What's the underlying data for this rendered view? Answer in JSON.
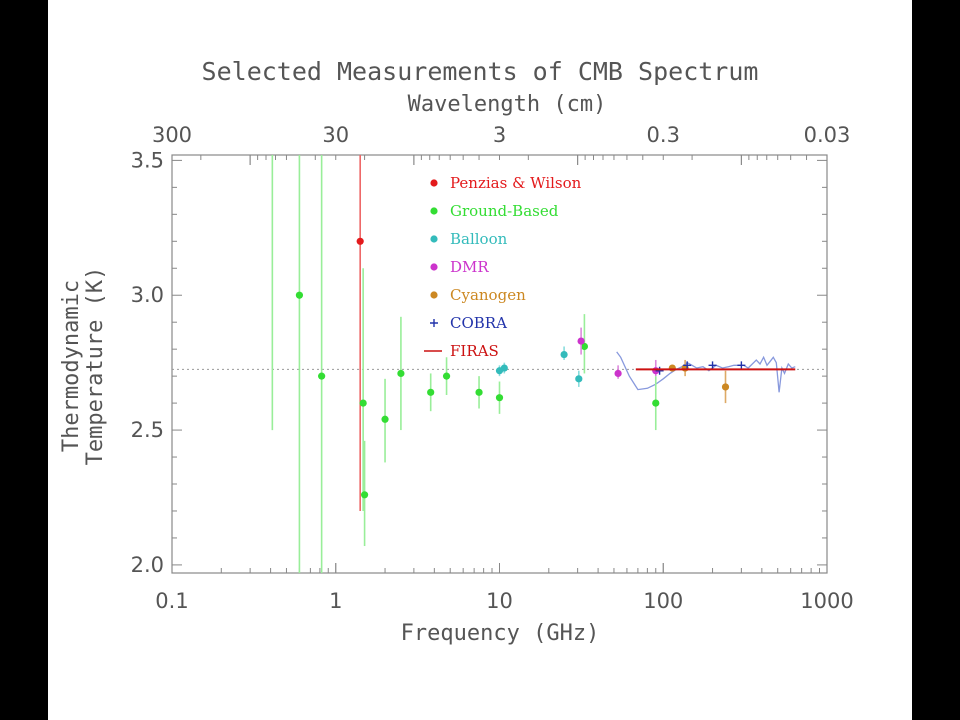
{
  "chart_data": {
    "type": "scatter",
    "title": "Selected Measurements of CMB Spectrum",
    "xlabel": "Frequency (GHz)",
    "ylabel_lines": [
      "Thermodynamic",
      "Temperature (K)"
    ],
    "top_axis_label": "Wavelength (cm)",
    "x_scale": "log",
    "xlim": [
      0.1,
      1000
    ],
    "ylim": [
      1.97,
      3.52
    ],
    "x_ticks": [
      {
        "value": 0.1,
        "label": "0.1"
      },
      {
        "value": 1,
        "label": "1"
      },
      {
        "value": 10,
        "label": "10"
      },
      {
        "value": 100,
        "label": "100"
      },
      {
        "value": 1000,
        "label": "1000"
      }
    ],
    "y_ticks": [
      {
        "value": 2.0,
        "label": "2.0"
      },
      {
        "value": 2.5,
        "label": "2.5"
      },
      {
        "value": 3.0,
        "label": "3.0"
      },
      {
        "value": 3.5,
        "label": "3.5"
      }
    ],
    "top_ticks": [
      {
        "value": 300,
        "label": "300"
      },
      {
        "value": 30,
        "label": "30"
      },
      {
        "value": 3,
        "label": "3"
      },
      {
        "value": 0.3,
        "label": "0.3"
      },
      {
        "value": 0.03,
        "label": "0.03"
      }
    ],
    "reference_line": {
      "y": 2.725,
      "style": "dotted",
      "color": "#999999"
    },
    "series": [
      {
        "name": "Penzias & Wilson",
        "marker": "dot",
        "color": "#e31a1c",
        "points": [
          {
            "x": 1.41,
            "y": 3.2,
            "yerr_low": 2.2,
            "yerr_high": 3.52
          }
        ]
      },
      {
        "name": "Ground-Based",
        "marker": "dot",
        "color": "#33dd33",
        "points": [
          {
            "x": 0.41,
            "y": null,
            "yerr_low": 2.5,
            "yerr_high": 3.52
          },
          {
            "x": 0.6,
            "y": 3.0,
            "yerr_low": 1.97,
            "yerr_high": 3.52
          },
          {
            "x": 0.82,
            "y": 2.7,
            "yerr_low": 1.97,
            "yerr_high": 3.52
          },
          {
            "x": 1.47,
            "y": 2.6,
            "yerr_low": 2.2,
            "yerr_high": 3.1
          },
          {
            "x": 1.5,
            "y": 2.26,
            "yerr_low": 2.07,
            "yerr_high": 2.46
          },
          {
            "x": 2.0,
            "y": 2.54,
            "yerr_low": 2.38,
            "yerr_high": 2.69
          },
          {
            "x": 2.5,
            "y": 2.71,
            "yerr_low": 2.5,
            "yerr_high": 2.92
          },
          {
            "x": 3.8,
            "y": 2.64,
            "yerr_low": 2.57,
            "yerr_high": 2.71
          },
          {
            "x": 4.75,
            "y": 2.7,
            "yerr_low": 2.63,
            "yerr_high": 2.77
          },
          {
            "x": 7.5,
            "y": 2.64,
            "yerr_low": 2.58,
            "yerr_high": 2.7
          },
          {
            "x": 10.0,
            "y": 2.62,
            "yerr_low": 2.56,
            "yerr_high": 2.68
          },
          {
            "x": 33.0,
            "y": 2.81,
            "yerr_low": 2.71,
            "yerr_high": 2.93
          },
          {
            "x": 90.0,
            "y": 2.6,
            "yerr_low": 2.5,
            "yerr_high": 2.7
          }
        ]
      },
      {
        "name": "Balloon",
        "marker": "dot",
        "color": "#33bbbb",
        "points": [
          {
            "x": 10.0,
            "y": 2.72,
            "yerr_low": 2.7,
            "yerr_high": 2.74
          },
          {
            "x": 10.7,
            "y": 2.73,
            "yerr_low": 2.71,
            "yerr_high": 2.75
          },
          {
            "x": 24.8,
            "y": 2.78,
            "yerr_low": 2.76,
            "yerr_high": 2.81
          },
          {
            "x": 30.5,
            "y": 2.69,
            "yerr_low": 2.66,
            "yerr_high": 2.72
          }
        ]
      },
      {
        "name": "DMR",
        "marker": "dot",
        "color": "#cc33cc",
        "points": [
          {
            "x": 31.5,
            "y": 2.83,
            "yerr_low": 2.78,
            "yerr_high": 2.88
          },
          {
            "x": 53.0,
            "y": 2.71,
            "yerr_low": 2.69,
            "yerr_high": 2.74
          },
          {
            "x": 90.0,
            "y": 2.72,
            "yerr_low": 2.7,
            "yerr_high": 2.76
          }
        ]
      },
      {
        "name": "Cyanogen",
        "marker": "dot",
        "color": "#cc8822",
        "points": [
          {
            "x": 113.6,
            "y": 2.73,
            "yerr_low": 2.72,
            "yerr_high": 2.74
          },
          {
            "x": 136.0,
            "y": 2.73,
            "yerr_low": 2.7,
            "yerr_high": 2.76
          },
          {
            "x": 240.0,
            "y": 2.66,
            "yerr_low": 2.6,
            "yerr_high": 2.72
          }
        ]
      },
      {
        "name": "COBRA",
        "marker": "plus",
        "color": "#2233aa",
        "points": [
          {
            "x": 95.0,
            "y": 2.72
          },
          {
            "x": 140.0,
            "y": 2.74
          },
          {
            "x": 200.0,
            "y": 2.74
          },
          {
            "x": 300.0,
            "y": 2.74
          }
        ]
      },
      {
        "name": "FIRAS",
        "marker": "line",
        "color": "#cc1111",
        "x_range": [
          68,
          640
        ],
        "y": 2.725
      }
    ],
    "cobra_trace": {
      "color": "#8899dd",
      "x": [
        52,
        55,
        62,
        70,
        80,
        90,
        100,
        110,
        120,
        130,
        140,
        150,
        160,
        175,
        190,
        210,
        230,
        250,
        270,
        290,
        310,
        330,
        350,
        370,
        390,
        410,
        430,
        450,
        470,
        490,
        510,
        530,
        550,
        580,
        610,
        640
      ],
      "y": [
        2.79,
        2.77,
        2.7,
        2.65,
        2.655,
        2.67,
        2.69,
        2.71,
        2.725,
        2.735,
        2.75,
        2.74,
        2.73,
        2.735,
        2.72,
        2.74,
        2.73,
        2.735,
        2.74,
        2.74,
        2.74,
        2.73,
        2.745,
        2.76,
        2.745,
        2.77,
        2.74,
        2.755,
        2.77,
        2.75,
        2.64,
        2.73,
        2.71,
        2.745,
        2.73,
        2.735
      ]
    },
    "legend": {
      "placement": "top-center",
      "items": [
        {
          "label": "Penzias & Wilson",
          "color": "#e31a1c",
          "symbol": "dot"
        },
        {
          "label": "Ground-Based",
          "color": "#33dd33",
          "symbol": "dot"
        },
        {
          "label": "Balloon",
          "color": "#33bbbb",
          "symbol": "dot"
        },
        {
          "label": "DMR",
          "color": "#cc33cc",
          "symbol": "dot"
        },
        {
          "label": "Cyanogen",
          "color": "#cc8822",
          "symbol": "dot"
        },
        {
          "label": "COBRA",
          "color": "#2233aa",
          "symbol": "+"
        },
        {
          "label": "FIRAS",
          "color": "#cc1111",
          "symbol": "—"
        }
      ]
    },
    "grid": false
  }
}
